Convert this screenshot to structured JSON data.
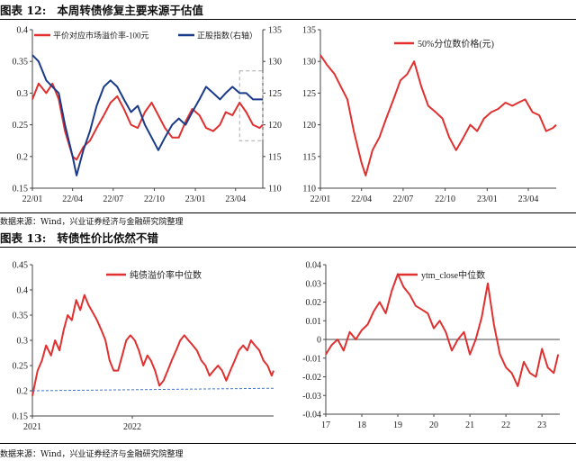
{
  "fig12": {
    "label": "图表 12:",
    "title": "本周转债修复主要来源于估值",
    "source": "数据来源：Wind，兴业证券经济与金融研究院整理"
  },
  "fig13": {
    "label": "图表 13:",
    "title": "转债性价比依然不错",
    "source": "数据来源：Wind，兴业证券经济与金融研究院整理"
  },
  "colors": {
    "red": "#e03030",
    "blue": "#1a3a8a",
    "dash_box": "#aaaaaa",
    "axis": "#444444"
  },
  "chart_data": [
    {
      "id": "c1",
      "type": "line",
      "x_ticks": [
        "22/01",
        "22/04",
        "22/07",
        "22/10",
        "23/01",
        "23/04"
      ],
      "x_range": [
        "2022-01-01",
        "2023-06-01"
      ],
      "y_left": {
        "lim": [
          0.15,
          0.4
        ],
        "ticks": [
          "0.15",
          "0.2",
          "0.25",
          "0.3",
          "0.35",
          "0.4"
        ]
      },
      "y_right": {
        "lim": [
          110,
          135
        ],
        "ticks": [
          "110",
          "115",
          "120",
          "125",
          "130",
          "135"
        ],
        "label": "（右轴）"
      },
      "legend_placement": "top",
      "highlight_box": {
        "x": [
          "2023-04-10",
          "2023-06-01"
        ],
        "y_left": [
          0.225,
          0.335
        ]
      },
      "series": [
        {
          "name": "平价对应市场溢价率-100元",
          "axis": "left",
          "color": "#e03030",
          "x": [
            "2022-01-01",
            "2022-01-15",
            "2022-02-01",
            "2022-02-15",
            "2022-03-01",
            "2022-03-15",
            "2022-04-01",
            "2022-04-10",
            "2022-04-25",
            "2022-05-10",
            "2022-05-25",
            "2022-06-10",
            "2022-06-25",
            "2022-07-10",
            "2022-07-25",
            "2022-08-10",
            "2022-08-25",
            "2022-09-10",
            "2022-09-25",
            "2022-10-10",
            "2022-10-25",
            "2022-11-10",
            "2022-11-25",
            "2022-12-10",
            "2022-12-25",
            "2023-01-10",
            "2023-01-25",
            "2023-02-10",
            "2023-02-25",
            "2023-03-10",
            "2023-03-25",
            "2023-04-10",
            "2023-04-25",
            "2023-05-10",
            "2023-05-25",
            "2023-06-01"
          ],
          "y": [
            0.29,
            0.315,
            0.3,
            0.315,
            0.29,
            0.24,
            0.2,
            0.195,
            0.215,
            0.225,
            0.245,
            0.265,
            0.285,
            0.295,
            0.275,
            0.25,
            0.245,
            0.27,
            0.285,
            0.265,
            0.245,
            0.23,
            0.23,
            0.255,
            0.275,
            0.265,
            0.245,
            0.24,
            0.25,
            0.27,
            0.265,
            0.285,
            0.27,
            0.25,
            0.245,
            0.25
          ]
        },
        {
          "name": "正股指数",
          "axis": "right",
          "color": "#1a3a8a",
          "x": [
            "2022-01-01",
            "2022-01-15",
            "2022-02-01",
            "2022-02-15",
            "2022-03-01",
            "2022-03-15",
            "2022-04-01",
            "2022-04-10",
            "2022-04-25",
            "2022-05-10",
            "2022-05-25",
            "2022-06-10",
            "2022-06-25",
            "2022-07-10",
            "2022-07-25",
            "2022-08-10",
            "2022-08-25",
            "2022-09-10",
            "2022-09-25",
            "2022-10-10",
            "2022-10-25",
            "2022-11-10",
            "2022-11-25",
            "2022-12-10",
            "2022-12-25",
            "2023-01-10",
            "2023-01-25",
            "2023-02-10",
            "2023-02-25",
            "2023-03-10",
            "2023-03-25",
            "2023-04-10",
            "2023-04-25",
            "2023-05-10",
            "2023-05-25",
            "2023-06-01"
          ],
          "y": [
            131,
            130,
            127,
            126,
            125,
            120,
            115,
            112,
            116,
            119,
            123,
            126,
            127,
            126,
            124,
            122,
            123,
            120,
            118,
            116,
            118,
            120,
            121,
            120,
            122,
            124,
            126,
            125,
            124,
            125,
            126,
            125,
            125,
            124,
            124,
            124
          ]
        }
      ]
    },
    {
      "id": "c2",
      "type": "line",
      "x_ticks": [
        "22/01",
        "22/04",
        "22/07",
        "22/10",
        "23/01",
        "23/04"
      ],
      "x_range": [
        "2022-01-01",
        "2023-06-01"
      ],
      "y_left": {
        "lim": [
          110,
          135
        ],
        "ticks": [
          "110",
          "115",
          "120",
          "125",
          "130",
          "135"
        ]
      },
      "legend_placement": "top-right",
      "series": [
        {
          "name": "50%分位数价格(元)",
          "axis": "left",
          "color": "#e03030",
          "x": [
            "2022-01-01",
            "2022-01-15",
            "2022-02-01",
            "2022-02-15",
            "2022-03-01",
            "2022-03-15",
            "2022-04-01",
            "2022-04-10",
            "2022-04-25",
            "2022-05-10",
            "2022-05-25",
            "2022-06-10",
            "2022-06-25",
            "2022-07-10",
            "2022-07-25",
            "2022-08-10",
            "2022-08-25",
            "2022-09-10",
            "2022-09-25",
            "2022-10-10",
            "2022-10-25",
            "2022-11-10",
            "2022-11-25",
            "2022-12-10",
            "2022-12-25",
            "2023-01-10",
            "2023-01-25",
            "2023-02-10",
            "2023-02-25",
            "2023-03-10",
            "2023-03-25",
            "2023-04-10",
            "2023-04-25",
            "2023-05-10",
            "2023-05-25",
            "2023-06-01"
          ],
          "y": [
            131,
            129.5,
            128,
            126,
            124,
            119,
            114,
            112,
            116,
            118,
            121,
            124,
            127,
            128,
            130,
            126,
            123,
            122,
            121,
            118,
            116,
            118,
            120,
            119,
            121,
            122,
            122.5,
            123.5,
            123,
            123.5,
            124,
            122,
            121.5,
            119,
            119.5,
            120
          ]
        }
      ]
    },
    {
      "id": "c3",
      "type": "line",
      "x_ticks": [
        "2021",
        "2022"
      ],
      "x_range": [
        "2021-01-01",
        "2023-06-01"
      ],
      "y_left": {
        "lim": [
          0.15,
          0.45
        ],
        "ticks": [
          "0.15",
          "0.2",
          "0.25",
          "0.3",
          "0.35",
          "0.4",
          "0.45"
        ]
      },
      "legend_placement": "top",
      "series": [
        {
          "name": "纯债溢价率中位数",
          "axis": "left",
          "color": "#e03030",
          "x": [
            "2021-01-01",
            "2021-01-20",
            "2021-02-05",
            "2021-02-20",
            "2021-03-10",
            "2021-03-25",
            "2021-04-10",
            "2021-04-25",
            "2021-05-10",
            "2021-05-25",
            "2021-06-10",
            "2021-06-25",
            "2021-07-10",
            "2021-07-25",
            "2021-08-10",
            "2021-08-25",
            "2021-09-10",
            "2021-09-25",
            "2021-10-10",
            "2021-10-25",
            "2021-11-10",
            "2021-11-25",
            "2021-12-10",
            "2021-12-25",
            "2022-01-10",
            "2022-01-25",
            "2022-02-10",
            "2022-02-25",
            "2022-03-10",
            "2022-03-25",
            "2022-04-10",
            "2022-04-25",
            "2022-05-10",
            "2022-05-25",
            "2022-06-10",
            "2022-06-25",
            "2022-07-10",
            "2022-07-25",
            "2022-08-10",
            "2022-08-25",
            "2022-09-10",
            "2022-09-25",
            "2022-10-10",
            "2022-10-25",
            "2022-11-10",
            "2022-11-25",
            "2022-12-10",
            "2022-12-25",
            "2023-01-10",
            "2023-01-25",
            "2023-02-10",
            "2023-02-25",
            "2023-03-10",
            "2023-03-25",
            "2023-04-10",
            "2023-04-25",
            "2023-05-10",
            "2023-05-25",
            "2023-06-01"
          ],
          "y": [
            0.19,
            0.24,
            0.26,
            0.29,
            0.27,
            0.3,
            0.28,
            0.32,
            0.35,
            0.34,
            0.38,
            0.36,
            0.39,
            0.37,
            0.355,
            0.34,
            0.32,
            0.3,
            0.26,
            0.24,
            0.24,
            0.27,
            0.3,
            0.31,
            0.3,
            0.28,
            0.25,
            0.27,
            0.26,
            0.24,
            0.21,
            0.22,
            0.24,
            0.26,
            0.28,
            0.3,
            0.31,
            0.3,
            0.29,
            0.28,
            0.26,
            0.25,
            0.23,
            0.24,
            0.25,
            0.24,
            0.22,
            0.24,
            0.26,
            0.28,
            0.29,
            0.28,
            0.3,
            0.29,
            0.28,
            0.26,
            0.25,
            0.23,
            0.24
          ]
        },
        {
          "name": "",
          "axis": "left",
          "color": "#4477cc",
          "dashed": true,
          "x": [
            "2021-01-01",
            "2023-06-01"
          ],
          "y": [
            0.2,
            0.205
          ]
        }
      ]
    },
    {
      "id": "c4",
      "type": "line",
      "x_ticks": [
        "17",
        "18",
        "19",
        "20",
        "21",
        "22",
        "23"
      ],
      "x_range": [
        "2017-01-01",
        "2023-07-01"
      ],
      "y_left": {
        "lim": [
          -0.04,
          0.04
        ],
        "ticks": [
          "-0.04",
          "-0.03",
          "-0.02",
          "-0.01",
          "0",
          "0.01",
          "0.02",
          "0.03",
          "0.04"
        ]
      },
      "legend_placement": "top",
      "series": [
        {
          "name": "ytm_close中位数",
          "axis": "left",
          "color": "#e03030",
          "x": [
            "2017-01-01",
            "2017-03-01",
            "2017-05-01",
            "2017-07-01",
            "2017-09-01",
            "2017-11-01",
            "2018-01-01",
            "2018-03-01",
            "2018-05-01",
            "2018-07-01",
            "2018-09-01",
            "2018-11-01",
            "2019-01-01",
            "2019-03-01",
            "2019-05-01",
            "2019-07-01",
            "2019-09-01",
            "2019-11-01",
            "2020-01-01",
            "2020-03-01",
            "2020-05-01",
            "2020-07-01",
            "2020-09-01",
            "2020-11-01",
            "2021-01-01",
            "2021-03-01",
            "2021-05-01",
            "2021-07-01",
            "2021-09-01",
            "2021-11-01",
            "2022-01-01",
            "2022-03-01",
            "2022-05-01",
            "2022-07-01",
            "2022-09-01",
            "2022-11-01",
            "2023-01-01",
            "2023-03-01",
            "2023-05-01",
            "2023-06-15"
          ],
          "y": [
            -0.008,
            -0.003,
            0.0,
            -0.006,
            0.004,
            0.0,
            0.005,
            0.008,
            0.015,
            0.02,
            0.014,
            0.026,
            0.035,
            0.028,
            0.024,
            0.018,
            0.016,
            0.014,
            0.006,
            0.01,
            0.004,
            -0.006,
            0.0,
            0.004,
            -0.008,
            0.0,
            0.012,
            0.03,
            0.008,
            -0.008,
            -0.015,
            -0.018,
            -0.025,
            -0.012,
            -0.018,
            -0.02,
            -0.005,
            -0.015,
            -0.018,
            -0.008
          ]
        }
      ]
    }
  ]
}
